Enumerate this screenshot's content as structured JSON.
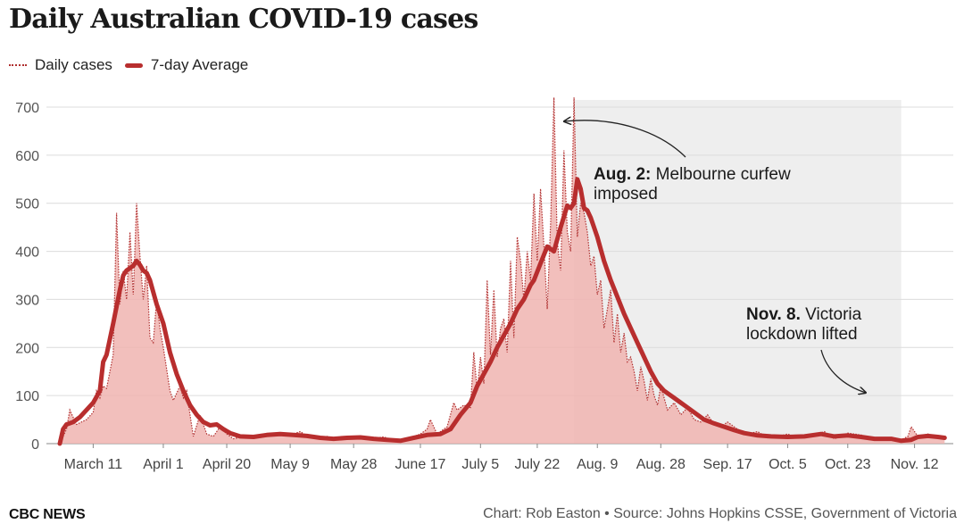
{
  "chart_data": {
    "type": "line",
    "title": "Daily Australian COVID-19 cases",
    "xlabel": "",
    "ylabel": "",
    "ylim": [
      0,
      720
    ],
    "y_ticks": [
      0,
      100,
      200,
      300,
      400,
      500,
      600,
      700
    ],
    "x_start": "2020-03-01",
    "x_end": "2020-11-22",
    "x_ticks": [
      {
        "date": "2020-03-11",
        "label": "March 11"
      },
      {
        "date": "2020-04-01",
        "label": "April 1"
      },
      {
        "date": "2020-04-20",
        "label": "April 20"
      },
      {
        "date": "2020-05-09",
        "label": "May 9"
      },
      {
        "date": "2020-05-28",
        "label": "May 28"
      },
      {
        "date": "2020-06-17",
        "label": "June 17"
      },
      {
        "date": "2020-07-05",
        "label": "July 5"
      },
      {
        "date": "2020-07-22",
        "label": "July 22"
      },
      {
        "date": "2020-08-09",
        "label": "Aug. 9"
      },
      {
        "date": "2020-08-28",
        "label": "Aug. 28"
      },
      {
        "date": "2020-09-17",
        "label": "Sep. 17"
      },
      {
        "date": "2020-10-05",
        "label": "Oct. 5"
      },
      {
        "date": "2020-10-23",
        "label": "Oct. 23"
      },
      {
        "date": "2020-11-12",
        "label": "Nov. 12"
      }
    ],
    "grid": true,
    "legend_position": "top-left",
    "shaded_period": {
      "start": "2020-08-02",
      "end": "2020-11-08"
    },
    "series": [
      {
        "name": "Daily cases",
        "style": "dotted",
        "color": "#b03030",
        "fill": "#f0b4b0",
        "points": [
          [
            "2020-03-01",
            0
          ],
          [
            "2020-03-03",
            30
          ],
          [
            "2020-03-04",
            70
          ],
          [
            "2020-03-06",
            40
          ],
          [
            "2020-03-09",
            50
          ],
          [
            "2020-03-11",
            65
          ],
          [
            "2020-03-12",
            110
          ],
          [
            "2020-03-13",
            95
          ],
          [
            "2020-03-14",
            120
          ],
          [
            "2020-03-15",
            115
          ],
          [
            "2020-03-17",
            185
          ],
          [
            "2020-03-18",
            480
          ],
          [
            "2020-03-19",
            290
          ],
          [
            "2020-03-20",
            360
          ],
          [
            "2020-03-21",
            300
          ],
          [
            "2020-03-22",
            440
          ],
          [
            "2020-03-23",
            310
          ],
          [
            "2020-03-24",
            500
          ],
          [
            "2020-03-25",
            390
          ],
          [
            "2020-03-26",
            300
          ],
          [
            "2020-03-27",
            370
          ],
          [
            "2020-03-28",
            220
          ],
          [
            "2020-03-29",
            210
          ],
          [
            "2020-03-30",
            300
          ],
          [
            "2020-03-31",
            240
          ],
          [
            "2020-04-01",
            200
          ],
          [
            "2020-04-03",
            110
          ],
          [
            "2020-04-04",
            90
          ],
          [
            "2020-04-06",
            120
          ],
          [
            "2020-04-07",
            95
          ],
          [
            "2020-04-08",
            110
          ],
          [
            "2020-04-09",
            60
          ],
          [
            "2020-04-10",
            15
          ],
          [
            "2020-04-12",
            60
          ],
          [
            "2020-04-13",
            40
          ],
          [
            "2020-04-14",
            20
          ],
          [
            "2020-04-16",
            15
          ],
          [
            "2020-04-18",
            35
          ],
          [
            "2020-04-20",
            20
          ],
          [
            "2020-04-22",
            10
          ],
          [
            "2020-04-25",
            15
          ],
          [
            "2020-04-30",
            18
          ],
          [
            "2020-05-05",
            20
          ],
          [
            "2020-05-09",
            18
          ],
          [
            "2020-05-12",
            25
          ],
          [
            "2020-05-15",
            12
          ],
          [
            "2020-05-20",
            15
          ],
          [
            "2020-05-24",
            8
          ],
          [
            "2020-05-28",
            12
          ],
          [
            "2020-06-02",
            10
          ],
          [
            "2020-06-06",
            14
          ],
          [
            "2020-06-10",
            5
          ],
          [
            "2020-06-13",
            10
          ],
          [
            "2020-06-17",
            20
          ],
          [
            "2020-06-19",
            30
          ],
          [
            "2020-06-20",
            50
          ],
          [
            "2020-06-22",
            20
          ],
          [
            "2020-06-25",
            35
          ],
          [
            "2020-06-27",
            85
          ],
          [
            "2020-06-28",
            70
          ],
          [
            "2020-06-30",
            80
          ],
          [
            "2020-07-02",
            75
          ],
          [
            "2020-07-03",
            190
          ],
          [
            "2020-07-04",
            110
          ],
          [
            "2020-07-05",
            180
          ],
          [
            "2020-07-06",
            125
          ],
          [
            "2020-07-07",
            340
          ],
          [
            "2020-07-08",
            185
          ],
          [
            "2020-07-09",
            320
          ],
          [
            "2020-07-10",
            180
          ],
          [
            "2020-07-11",
            240
          ],
          [
            "2020-07-12",
            260
          ],
          [
            "2020-07-13",
            190
          ],
          [
            "2020-07-14",
            380
          ],
          [
            "2020-07-15",
            220
          ],
          [
            "2020-07-16",
            430
          ],
          [
            "2020-07-17",
            380
          ],
          [
            "2020-07-18",
            300
          ],
          [
            "2020-07-19",
            400
          ],
          [
            "2020-07-20",
            340
          ],
          [
            "2020-07-21",
            520
          ],
          [
            "2020-07-22",
            380
          ],
          [
            "2020-07-23",
            530
          ],
          [
            "2020-07-24",
            410
          ],
          [
            "2020-07-25",
            280
          ],
          [
            "2020-07-26",
            460
          ],
          [
            "2020-07-27",
            720
          ],
          [
            "2020-07-28",
            420
          ],
          [
            "2020-07-29",
            360
          ],
          [
            "2020-07-30",
            610
          ],
          [
            "2020-07-31",
            440
          ],
          [
            "2020-08-01",
            400
          ],
          [
            "2020-08-02",
            720
          ],
          [
            "2020-08-03",
            430
          ],
          [
            "2020-08-04",
            500
          ],
          [
            "2020-08-05",
            480
          ],
          [
            "2020-08-06",
            440
          ],
          [
            "2020-08-07",
            370
          ],
          [
            "2020-08-08",
            390
          ],
          [
            "2020-08-09",
            310
          ],
          [
            "2020-08-10",
            340
          ],
          [
            "2020-08-11",
            240
          ],
          [
            "2020-08-12",
            280
          ],
          [
            "2020-08-13",
            320
          ],
          [
            "2020-08-14",
            210
          ],
          [
            "2020-08-15",
            270
          ],
          [
            "2020-08-16",
            190
          ],
          [
            "2020-08-17",
            230
          ],
          [
            "2020-08-18",
            170
          ],
          [
            "2020-08-19",
            180
          ],
          [
            "2020-08-20",
            150
          ],
          [
            "2020-08-21",
            110
          ],
          [
            "2020-08-22",
            160
          ],
          [
            "2020-08-23",
            130
          ],
          [
            "2020-08-24",
            90
          ],
          [
            "2020-08-25",
            135
          ],
          [
            "2020-08-26",
            100
          ],
          [
            "2020-08-27",
            80
          ],
          [
            "2020-08-28",
            120
          ],
          [
            "2020-08-30",
            70
          ],
          [
            "2020-09-01",
            85
          ],
          [
            "2020-09-03",
            60
          ],
          [
            "2020-09-05",
            75
          ],
          [
            "2020-09-07",
            50
          ],
          [
            "2020-09-09",
            45
          ],
          [
            "2020-09-11",
            60
          ],
          [
            "2020-09-13",
            40
          ],
          [
            "2020-09-15",
            35
          ],
          [
            "2020-09-17",
            45
          ],
          [
            "2020-09-20",
            30
          ],
          [
            "2020-09-23",
            20
          ],
          [
            "2020-09-26",
            25
          ],
          [
            "2020-09-29",
            12
          ],
          [
            "2020-10-02",
            15
          ],
          [
            "2020-10-05",
            20
          ],
          [
            "2020-10-08",
            12
          ],
          [
            "2020-10-12",
            15
          ],
          [
            "2020-10-16",
            25
          ],
          [
            "2020-10-19",
            10
          ],
          [
            "2020-10-23",
            22
          ],
          [
            "2020-10-27",
            18
          ],
          [
            "2020-10-31",
            10
          ],
          [
            "2020-11-04",
            12
          ],
          [
            "2020-11-08",
            8
          ],
          [
            "2020-11-10",
            15
          ],
          [
            "2020-11-11",
            35
          ],
          [
            "2020-11-13",
            15
          ],
          [
            "2020-11-16",
            20
          ],
          [
            "2020-11-19",
            12
          ],
          [
            "2020-11-21",
            10
          ]
        ]
      },
      {
        "name": "7-day Average",
        "style": "solid",
        "color": "#b82e2e",
        "points": [
          [
            "2020-03-01",
            0
          ],
          [
            "2020-03-02",
            30
          ],
          [
            "2020-03-03",
            40
          ],
          [
            "2020-03-05",
            45
          ],
          [
            "2020-03-07",
            55
          ],
          [
            "2020-03-09",
            70
          ],
          [
            "2020-03-11",
            85
          ],
          [
            "2020-03-13",
            110
          ],
          [
            "2020-03-14",
            170
          ],
          [
            "2020-03-15",
            185
          ],
          [
            "2020-03-17",
            250
          ],
          [
            "2020-03-19",
            320
          ],
          [
            "2020-03-20",
            350
          ],
          [
            "2020-03-21",
            360
          ],
          [
            "2020-03-22",
            365
          ],
          [
            "2020-03-23",
            370
          ],
          [
            "2020-03-24",
            380
          ],
          [
            "2020-03-25",
            372
          ],
          [
            "2020-03-26",
            360
          ],
          [
            "2020-03-27",
            355
          ],
          [
            "2020-03-28",
            340
          ],
          [
            "2020-03-30",
            290
          ],
          [
            "2020-04-01",
            250
          ],
          [
            "2020-04-03",
            190
          ],
          [
            "2020-04-05",
            145
          ],
          [
            "2020-04-07",
            110
          ],
          [
            "2020-04-09",
            80
          ],
          [
            "2020-04-11",
            60
          ],
          [
            "2020-04-13",
            45
          ],
          [
            "2020-04-15",
            38
          ],
          [
            "2020-04-17",
            40
          ],
          [
            "2020-04-19",
            30
          ],
          [
            "2020-04-21",
            22
          ],
          [
            "2020-04-24",
            15
          ],
          [
            "2020-04-28",
            14
          ],
          [
            "2020-05-02",
            18
          ],
          [
            "2020-05-06",
            20
          ],
          [
            "2020-05-10",
            18
          ],
          [
            "2020-05-14",
            16
          ],
          [
            "2020-05-18",
            12
          ],
          [
            "2020-05-22",
            10
          ],
          [
            "2020-05-26",
            12
          ],
          [
            "2020-05-30",
            13
          ],
          [
            "2020-06-03",
            10
          ],
          [
            "2020-06-07",
            8
          ],
          [
            "2020-06-11",
            6
          ],
          [
            "2020-06-15",
            12
          ],
          [
            "2020-06-19",
            18
          ],
          [
            "2020-06-23",
            20
          ],
          [
            "2020-06-26",
            30
          ],
          [
            "2020-06-29",
            60
          ],
          [
            "2020-07-02",
            85
          ],
          [
            "2020-07-04",
            120
          ],
          [
            "2020-07-06",
            145
          ],
          [
            "2020-07-08",
            170
          ],
          [
            "2020-07-10",
            200
          ],
          [
            "2020-07-12",
            225
          ],
          [
            "2020-07-14",
            250
          ],
          [
            "2020-07-16",
            280
          ],
          [
            "2020-07-18",
            300
          ],
          [
            "2020-07-20",
            330
          ],
          [
            "2020-07-21",
            340
          ],
          [
            "2020-07-23",
            375
          ],
          [
            "2020-07-25",
            410
          ],
          [
            "2020-07-27",
            400
          ],
          [
            "2020-07-29",
            450
          ],
          [
            "2020-07-31",
            495
          ],
          [
            "2020-08-01",
            490
          ],
          [
            "2020-08-02",
            500
          ],
          [
            "2020-08-03",
            550
          ],
          [
            "2020-08-04",
            530
          ],
          [
            "2020-08-05",
            490
          ],
          [
            "2020-08-06",
            485
          ],
          [
            "2020-08-07",
            470
          ],
          [
            "2020-08-09",
            430
          ],
          [
            "2020-08-11",
            380
          ],
          [
            "2020-08-13",
            340
          ],
          [
            "2020-08-15",
            305
          ],
          [
            "2020-08-17",
            270
          ],
          [
            "2020-08-19",
            240
          ],
          [
            "2020-08-21",
            210
          ],
          [
            "2020-08-23",
            180
          ],
          [
            "2020-08-25",
            150
          ],
          [
            "2020-08-27",
            125
          ],
          [
            "2020-08-29",
            110
          ],
          [
            "2020-09-01",
            95
          ],
          [
            "2020-09-04",
            80
          ],
          [
            "2020-09-07",
            65
          ],
          [
            "2020-09-10",
            50
          ],
          [
            "2020-09-13",
            42
          ],
          [
            "2020-09-16",
            35
          ],
          [
            "2020-09-19",
            28
          ],
          [
            "2020-09-22",
            22
          ],
          [
            "2020-09-26",
            17
          ],
          [
            "2020-09-30",
            15
          ],
          [
            "2020-10-05",
            14
          ],
          [
            "2020-10-10",
            15
          ],
          [
            "2020-10-15",
            20
          ],
          [
            "2020-10-19",
            15
          ],
          [
            "2020-10-23",
            17
          ],
          [
            "2020-10-27",
            14
          ],
          [
            "2020-10-31",
            10
          ],
          [
            "2020-11-05",
            10
          ],
          [
            "2020-11-08",
            6
          ],
          [
            "2020-11-11",
            8
          ],
          [
            "2020-11-13",
            14
          ],
          [
            "2020-11-16",
            16
          ],
          [
            "2020-11-19",
            14
          ],
          [
            "2020-11-21",
            12
          ]
        ]
      }
    ],
    "annotations": [
      {
        "id": "curfew",
        "bold": "Aug. 2:",
        "text_line1": " Melbourne curfew",
        "text_line2": "imposed",
        "date": "2020-08-02"
      },
      {
        "id": "lockdown",
        "bold": "Nov. 8.",
        "text_line1": " Victoria",
        "text_line2": "lockdown lifted",
        "date": "2020-11-08"
      }
    ]
  },
  "footer": {
    "brand": "CBC NEWS",
    "credit": "Chart: Rob Easton • Source: Johns Hopkins CSSE, Government of Victoria"
  }
}
